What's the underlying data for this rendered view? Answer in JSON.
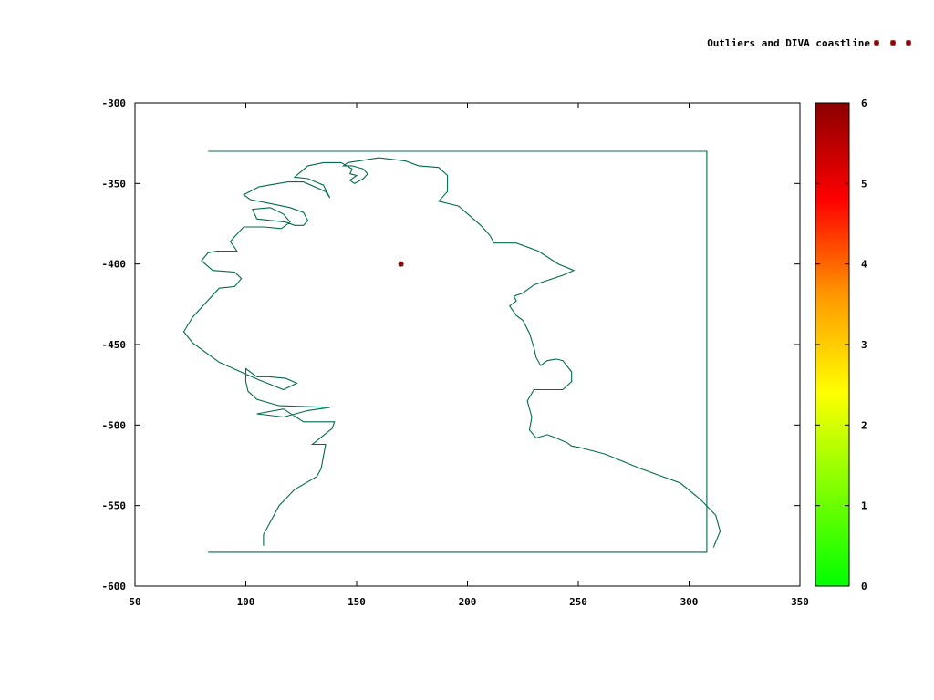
{
  "chart_data": {
    "type": "scatter",
    "title": "",
    "xlabel": "",
    "ylabel": "",
    "xlim": [
      50,
      350
    ],
    "ylim": [
      -600,
      -300
    ],
    "x_ticks": [
      50,
      100,
      150,
      200,
      250,
      300,
      350
    ],
    "y_ticks": [
      -300,
      -350,
      -400,
      -450,
      -500,
      -550,
      -600
    ],
    "grid": false,
    "legend": {
      "label": "Outliers and DIVA coastline",
      "position": "top-right",
      "marker_color": "#8b0000"
    },
    "colorbar": {
      "min": 0,
      "max": 6,
      "ticks": [
        0,
        1,
        2,
        3,
        4,
        5,
        6
      ],
      "colors": [
        "#00ff00",
        "#7fff00",
        "#ffff00",
        "#ff9900",
        "#ff0000",
        "#8b0000"
      ]
    },
    "series": [
      {
        "type": "line",
        "color": "#006b4f",
        "values": [
          [
            108,
            -575
          ],
          [
            108,
            -568
          ],
          [
            115,
            -550
          ],
          [
            122,
            -540
          ],
          [
            132,
            -532
          ],
          [
            134,
            -527
          ],
          [
            136,
            -512
          ],
          [
            130,
            -512
          ],
          [
            139,
            -502
          ],
          [
            140,
            -498
          ],
          [
            126,
            -498
          ],
          [
            117,
            -490
          ],
          [
            105,
            -493
          ],
          [
            117,
            -495
          ],
          [
            128,
            -491
          ],
          [
            138,
            -489
          ],
          [
            115,
            -488
          ],
          [
            105,
            -484
          ],
          [
            101,
            -479
          ],
          [
            100,
            -473
          ],
          [
            100,
            -465
          ],
          [
            105,
            -470
          ],
          [
            110,
            -470
          ],
          [
            118,
            -471
          ],
          [
            123,
            -474
          ],
          [
            117,
            -478
          ],
          [
            106,
            -472
          ],
          [
            88,
            -461
          ],
          [
            76,
            -449
          ],
          [
            72,
            -442
          ],
          [
            76,
            -433
          ],
          [
            80,
            -427
          ],
          [
            88,
            -415
          ],
          [
            95,
            -414
          ],
          [
            98,
            -409
          ],
          [
            95,
            -405
          ],
          [
            85,
            -404
          ],
          [
            80,
            -398
          ],
          [
            83,
            -393
          ],
          [
            87,
            -392
          ],
          [
            96,
            -392
          ],
          [
            93,
            -386
          ],
          [
            99,
            -377
          ],
          [
            108,
            -377
          ],
          [
            116,
            -378
          ],
          [
            120,
            -374
          ],
          [
            117,
            -369
          ],
          [
            111,
            -365
          ],
          [
            103,
            -366
          ],
          [
            105,
            -372
          ],
          [
            118,
            -374
          ],
          [
            122,
            -376
          ],
          [
            126,
            -376
          ],
          [
            128,
            -373
          ],
          [
            126,
            -368
          ],
          [
            120,
            -365
          ],
          [
            113,
            -363
          ],
          [
            102,
            -360
          ],
          [
            99,
            -357
          ],
          [
            106,
            -352
          ],
          [
            119,
            -349
          ],
          [
            126,
            -349
          ],
          [
            136,
            -355
          ],
          [
            138,
            -359
          ],
          [
            135,
            -351
          ],
          [
            128,
            -347
          ],
          [
            122,
            -346
          ],
          [
            128,
            -339
          ],
          [
            135,
            -337
          ],
          [
            143,
            -337
          ],
          [
            148,
            -341
          ],
          [
            147,
            -344
          ],
          [
            150,
            -345
          ],
          [
            147,
            -348
          ],
          [
            149,
            -350
          ],
          [
            153,
            -347
          ],
          [
            155,
            -344
          ],
          [
            153,
            -341
          ],
          [
            148,
            -339
          ],
          [
            144,
            -339
          ],
          [
            146,
            -337
          ],
          [
            151,
            -336
          ],
          [
            160,
            -334
          ],
          [
            166,
            -335
          ],
          [
            172,
            -336
          ],
          [
            178,
            -339
          ],
          [
            187,
            -340
          ],
          [
            191,
            -345
          ],
          [
            191,
            -355
          ],
          [
            187,
            -361
          ],
          [
            196,
            -364
          ],
          [
            206,
            -376
          ],
          [
            210,
            -382
          ],
          [
            212,
            -387
          ],
          [
            222,
            -387
          ],
          [
            232,
            -392
          ],
          [
            241,
            -400
          ],
          [
            248,
            -404
          ],
          [
            243,
            -407
          ],
          [
            230,
            -413
          ],
          [
            225,
            -418
          ],
          [
            221,
            -420
          ],
          [
            222,
            -423
          ],
          [
            219,
            -426
          ],
          [
            222,
            -432
          ],
          [
            225,
            -435
          ],
          [
            228,
            -443
          ],
          [
            230,
            -452
          ],
          [
            231,
            -458
          ],
          [
            233,
            -463
          ],
          [
            236,
            -460
          ],
          [
            240,
            -459
          ],
          [
            243,
            -460
          ],
          [
            247,
            -467
          ],
          [
            247,
            -473
          ],
          [
            243,
            -478
          ],
          [
            230,
            -478
          ],
          [
            227,
            -485
          ],
          [
            229,
            -495
          ],
          [
            228,
            -503
          ],
          [
            231,
            -508
          ],
          [
            236,
            -506
          ],
          [
            240,
            -508
          ],
          [
            245,
            -511
          ],
          [
            247,
            -513
          ],
          [
            251,
            -514
          ],
          [
            262,
            -518
          ],
          [
            278,
            -527
          ],
          [
            296,
            -536
          ],
          [
            305,
            -546
          ],
          [
            312,
            -556
          ],
          [
            314,
            -566
          ],
          [
            311,
            -576
          ]
        ]
      },
      {
        "type": "line",
        "color": "#006b4f",
        "values": [
          [
            83,
            -330
          ],
          [
            308,
            -330
          ],
          [
            308,
            -579
          ],
          [
            83,
            -579
          ]
        ]
      },
      {
        "type": "points",
        "color": "#8b0000",
        "values": [
          [
            170,
            -400
          ]
        ]
      }
    ]
  }
}
